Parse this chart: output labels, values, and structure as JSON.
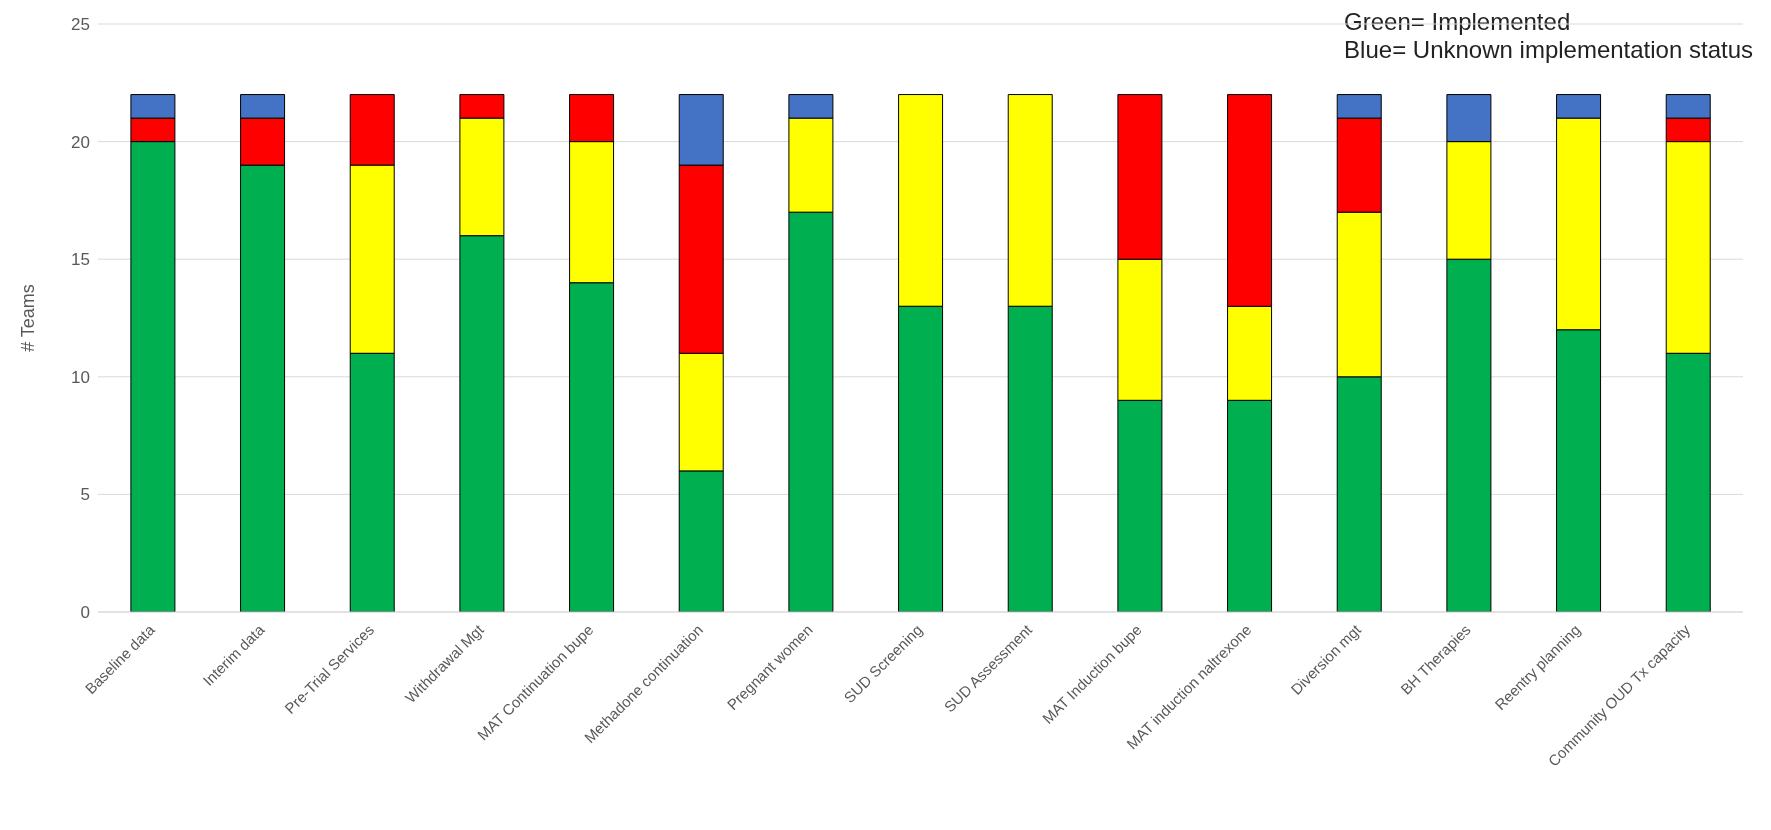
{
  "chart_data": {
    "type": "bar",
    "stacked": true,
    "ylabel": "# Teams",
    "categories": [
      "Baseline data",
      "Interim data",
      "Pre-Trial Services",
      "Withdrawal Mgt",
      "MAT Continuation bupe",
      "Methadone continuation",
      "Pregnant women",
      "SUD Screening",
      "SUD Assessment",
      "MAT Induction bupe",
      "MAT induction naltrexone",
      "Diversion mgt",
      "BH Therapies",
      "Reentry planning",
      "Community OUD Tx capacity"
    ],
    "series": [
      {
        "color": "#00b050",
        "values": [
          20,
          19,
          11,
          16,
          14,
          6,
          17,
          13,
          13,
          9,
          9,
          10,
          15,
          12,
          11
        ]
      },
      {
        "color": "#ffff00",
        "values": [
          0,
          0,
          8,
          5,
          6,
          5,
          4,
          9,
          9,
          6,
          4,
          7,
          5,
          9,
          9
        ]
      },
      {
        "color": "#ff0000",
        "values": [
          1,
          2,
          3,
          1,
          2,
          8,
          0,
          0,
          0,
          7,
          9,
          4,
          0,
          0,
          1
        ]
      },
      {
        "color": "#4472c4",
        "values": [
          1,
          1,
          0,
          0,
          0,
          3,
          1,
          0,
          0,
          0,
          0,
          1,
          2,
          1,
          1
        ]
      }
    ],
    "ylim": [
      0,
      25
    ],
    "yticks": [
      0,
      5,
      10,
      15,
      20,
      25
    ],
    "grid": "y",
    "annotations": [
      "Green= Implemented",
      "Blue= Unknown implementation status"
    ]
  }
}
